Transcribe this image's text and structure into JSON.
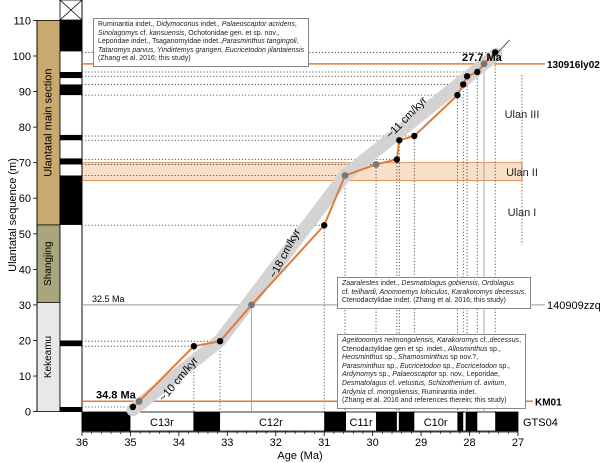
{
  "chart_data": {
    "type": "line",
    "title": "",
    "xlabel": "Age (Ma)",
    "ylabel": "Ulantatal sequence (m)",
    "xlim": [
      36,
      27
    ],
    "ylim": [
      0,
      110
    ],
    "xticks": [
      "36",
      "35",
      "34",
      "33",
      "32",
      "31",
      "30",
      "29",
      "28",
      "27"
    ],
    "yticks": [
      "0",
      "10",
      "20",
      "30",
      "40",
      "50",
      "60",
      "70",
      "80",
      "90",
      "100",
      "110"
    ],
    "series": [
      {
        "name": "age-depth model",
        "color": "#e07b39",
        "points": [
          {
            "age": 34.95,
            "h": 1.3,
            "kind": "sample"
          },
          {
            "age": 34.82,
            "h": 2.9,
            "kind": "control"
          },
          {
            "age": 33.69,
            "h": 18.4,
            "kind": "sample"
          },
          {
            "age": 33.15,
            "h": 19.8,
            "kind": "sample"
          },
          {
            "age": 32.5,
            "h": 30.0,
            "kind": "control"
          },
          {
            "age": 31.0,
            "h": 52.4,
            "kind": "sample"
          },
          {
            "age": 30.57,
            "h": 66.4,
            "kind": "control"
          },
          {
            "age": 29.93,
            "h": 69.5,
            "kind": "control"
          },
          {
            "age": 29.5,
            "h": 70.9,
            "kind": "sample"
          },
          {
            "age": 29.45,
            "h": 76.3,
            "kind": "sample"
          },
          {
            "age": 29.14,
            "h": 77.5,
            "kind": "sample"
          },
          {
            "age": 28.25,
            "h": 89.0,
            "kind": "sample"
          },
          {
            "age": 28.13,
            "h": 92.0,
            "kind": "sample"
          },
          {
            "age": 28.05,
            "h": 94.3,
            "kind": "sample"
          },
          {
            "age": 27.84,
            "h": 95.5,
            "kind": "sample"
          },
          {
            "age": 27.7,
            "h": 97.8,
            "kind": "control"
          },
          {
            "age": 27.47,
            "h": 101.0,
            "kind": "sample"
          }
        ]
      }
    ],
    "rate_band": {
      "color": "#d3d3d3",
      "points": [
        [
          34.95,
          0.5
        ],
        [
          33.15,
          20
        ],
        [
          30.57,
          66.4
        ],
        [
          27.7,
          97.8
        ],
        [
          27.45,
          100.5
        ]
      ]
    },
    "rate_labels": [
      {
        "text": "~10 cm/kyr",
        "age": 33.95,
        "h": 8.5,
        "angle": -50
      },
      {
        "text": "~18 cm/kyr",
        "age": 31.75,
        "h": 44,
        "angle": -62
      },
      {
        "text": "~11 cm/kyr",
        "age": 29.25,
        "h": 82,
        "angle": -46
      }
    ],
    "horizons": [
      {
        "h": 2.9,
        "label": "KM01",
        "age_label": "34.8 Ma",
        "color": "#e07b39",
        "bold": true
      },
      {
        "h": 30.0,
        "label": "140909zzq01",
        "age_label": "32.5 Ma",
        "color": "#999999",
        "bold": false
      },
      {
        "h": 97.8,
        "label": "130916ly02",
        "age_label": "27.7 Ma",
        "color": "#e07b39",
        "bold": true
      }
    ],
    "ulan_zones": {
      "labels": [
        "Ulan III",
        "Ulan II",
        "Ulan I"
      ],
      "ulan2_band": [
        65,
        70
      ],
      "band_color": "#f7dfc8"
    },
    "lithology": [
      {
        "name": "Ulantatal main section",
        "from": 52.5,
        "to": 110,
        "color": "#c8a970"
      },
      {
        "name": "Shangjing",
        "from": 30.7,
        "to": 52.5,
        "color": "#a9a57c"
      },
      {
        "name": "Kekeamu",
        "from": 0,
        "to": 30.7,
        "color": "#e8e8e8"
      }
    ],
    "local_polarity_black": [
      [
        101.3,
        110
      ],
      [
        93.8,
        95.5
      ],
      [
        89,
        92
      ],
      [
        76.3,
        77.8
      ],
      [
        69.5,
        71.2
      ],
      [
        52.5,
        66.4
      ],
      [
        18.4,
        20
      ],
      [
        0,
        1.3
      ]
    ],
    "gts": {
      "label": "GTS04",
      "black": [
        [
          36,
          35
        ],
        [
          33.7,
          33.15
        ],
        [
          31,
          30.55
        ],
        [
          29.93,
          29.5
        ],
        [
          29.46,
          29.14
        ],
        [
          28.25,
          28.13
        ],
        [
          28.08,
          27.84
        ],
        [
          27.47,
          27
        ]
      ],
      "chrons": [
        {
          "name": "C13r",
          "age": 34.35
        },
        {
          "name": "C12r",
          "age": 32.1
        },
        {
          "name": "C11r",
          "age": 30.24
        },
        {
          "name": "C10r",
          "age": 28.7
        }
      ]
    }
  },
  "faunas": {
    "top": [
      [
        {
          "t": "Ruminantia indet., "
        },
        {
          "t": "Didymoconus",
          "i": 1
        },
        {
          "t": " indet., "
        },
        {
          "t": "Palaeoscaptor acridens",
          "i": 1
        },
        {
          "t": ","
        }
      ],
      [
        {
          "t": "Sinolagomys",
          "i": 1
        },
        {
          "t": " cf. "
        },
        {
          "t": "kansuensis",
          "i": 1
        },
        {
          "t": ", Ochotonidae gen. et sp. nov.,"
        }
      ],
      [
        {
          "t": "Leporidae indet., Tsaganomyidae indet.,"
        },
        {
          "t": "Parasminthus tangingoli",
          "i": 1
        },
        {
          "t": ","
        }
      ],
      [
        {
          "t": "Tataromys parvus, Yindirtemys grangeri, Eucricetodon jilantaiensis",
          "i": 1
        }
      ],
      [
        {
          "t": "(Zhang et al. 2016; this study)"
        }
      ]
    ],
    "middle": [
      [
        {
          "t": "Zaaralestes",
          "i": 1
        },
        {
          "t": " indet., "
        },
        {
          "t": "Desmatolagus gobiensis",
          "i": 1
        },
        {
          "t": ", "
        },
        {
          "t": "Ordolagus",
          "i": 1
        }
      ],
      [
        {
          "t": "cf. "
        },
        {
          "t": "teilhardi, Anomoemys lohiculus, Karakoromys decessus",
          "i": 1
        },
        {
          "t": ","
        }
      ],
      [
        {
          "t": "Ctenodactylidae indet. (Zhang et al. 2016; this study)"
        }
      ]
    ],
    "bottom": [
      [
        {
          "t": "Ageitonomys neimongolensis, Karakoromys",
          "i": 1
        },
        {
          "t": " cf."
        },
        {
          "t": ",decessus",
          "i": 1
        },
        {
          "t": ","
        }
      ],
      [
        {
          "t": "Ctenodactylidae gen et sp. indet., "
        },
        {
          "t": "Allosminthus",
          "i": 1
        },
        {
          "t": " sp.,"
        }
      ],
      [
        {
          "t": "Heosminthus",
          "i": 1
        },
        {
          "t": " sp., "
        },
        {
          "t": "Shamosminthus",
          "i": 1
        },
        {
          "t": " sp nov.?,"
        }
      ],
      [
        {
          "t": "Parasminthus",
          "i": 1
        },
        {
          "t": " sp., "
        },
        {
          "t": "Eucricetodon",
          "i": 1
        },
        {
          "t": " sp., "
        },
        {
          "t": "Eocricetodon",
          "i": 1
        },
        {
          "t": " sp.,"
        }
      ],
      [
        {
          "t": "Ardynomys",
          "i": 1
        },
        {
          "t": " sp., "
        },
        {
          "t": "Palaeoscaptor",
          "i": 1
        },
        {
          "t": " sp. nov., Leporidae,"
        }
      ],
      [
        {
          "t": "Desmatolagus",
          "i": 1
        },
        {
          "t": " cf. "
        },
        {
          "t": "vetustus, Schizotherium",
          "i": 1
        },
        {
          "t": " cf. "
        },
        {
          "t": "avitum",
          "i": 1
        },
        {
          "t": ","
        }
      ],
      [
        {
          "t": "Ardynia",
          "i": 1
        },
        {
          "t": " cf. "
        },
        {
          "t": "mongoliensis",
          "i": 1
        },
        {
          "t": ", Ruminantia indet."
        }
      ],
      [
        {
          "t": "(Zhang et al. 2016 and references therein; this study)"
        }
      ]
    ]
  }
}
